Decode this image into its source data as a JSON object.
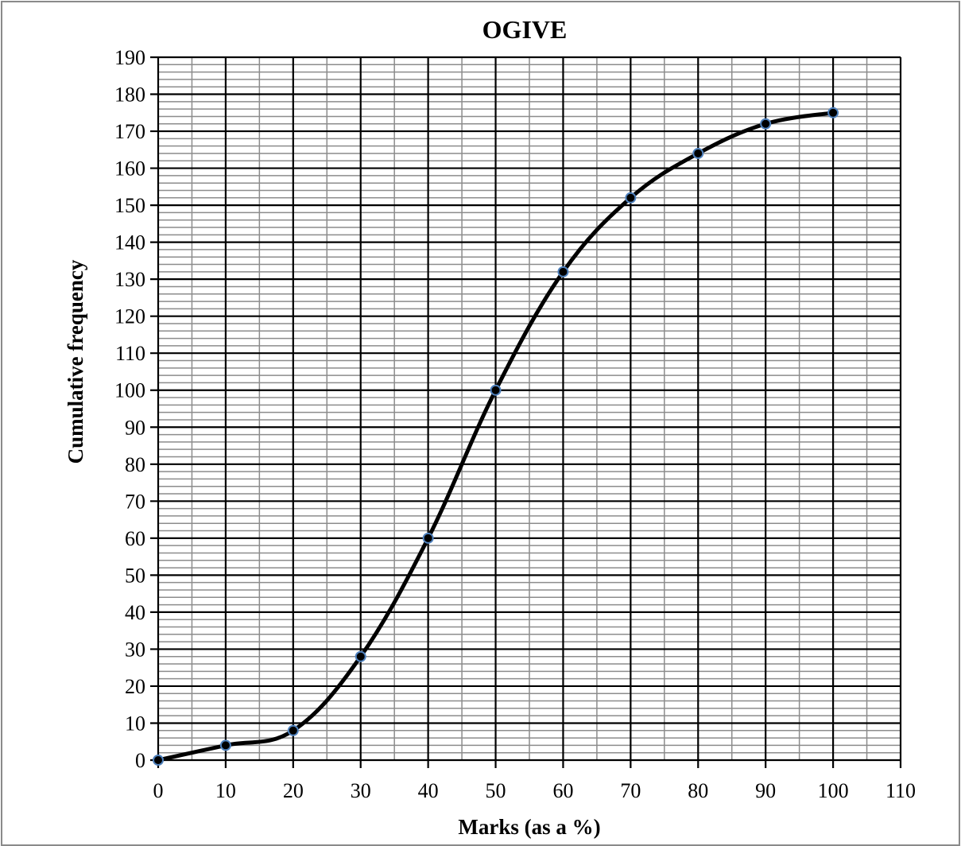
{
  "chart_data": {
    "type": "line",
    "title": "OGIVE",
    "xlabel": "Marks (as a %)",
    "ylabel": "Cumulative frequency",
    "xlim": [
      0,
      110
    ],
    "ylim": [
      0,
      190
    ],
    "x_major_step": 10,
    "y_major_step": 10,
    "x_minor_step": 5,
    "y_minor_step": 2,
    "x_ticks": [
      "0",
      "10",
      "20",
      "30",
      "40",
      "50",
      "60",
      "70",
      "80",
      "90",
      "100",
      "110"
    ],
    "y_ticks": [
      "0",
      "10",
      "20",
      "30",
      "40",
      "50",
      "60",
      "70",
      "80",
      "90",
      "100",
      "110",
      "120",
      "130",
      "140",
      "150",
      "160",
      "170",
      "180",
      "190"
    ],
    "grid": true,
    "smooth": true,
    "series": [
      {
        "x": [
          0,
          10,
          20,
          30,
          40,
          50,
          60,
          70,
          80,
          90,
          100
        ],
        "y": [
          0,
          4,
          8,
          28,
          60,
          100,
          132,
          152,
          164,
          172,
          175
        ]
      }
    ],
    "colors": {
      "line": "#000000",
      "marker_fill": "#000000",
      "marker_stroke": "#4f81bd",
      "major_grid": "#000000",
      "minor_grid": "#8c8c8c"
    }
  }
}
